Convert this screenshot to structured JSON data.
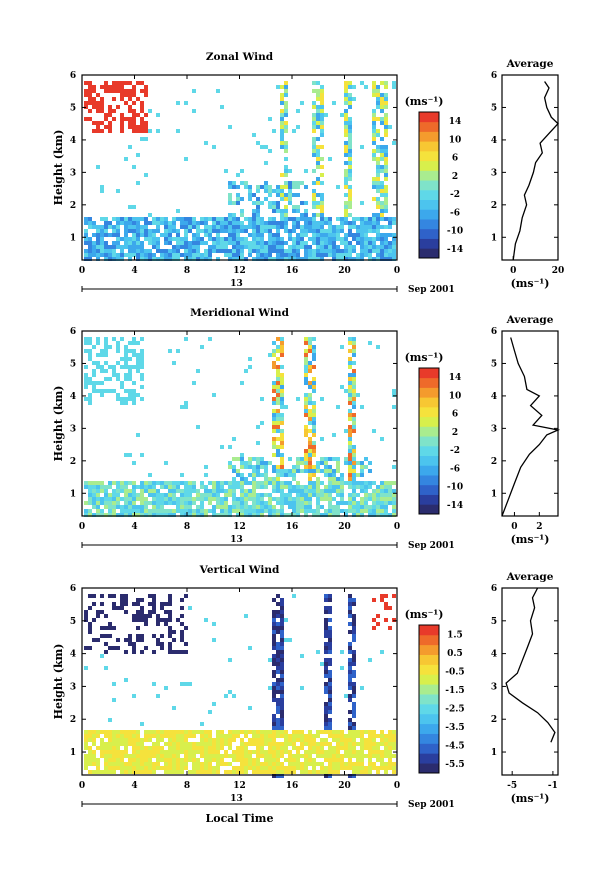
{
  "chart_data": [
    {
      "type": "heatmap",
      "title": "Zonal Wind",
      "ylabel": "Height (km)",
      "ylim": [
        0.3,
        6
      ],
      "xlim": [
        0,
        24
      ],
      "x_ticks": [
        "0",
        "4",
        "8",
        "12",
        "16",
        "20",
        "0"
      ],
      "y_ticks": [
        "1",
        "2",
        "3",
        "4",
        "5",
        "6"
      ],
      "date_day": "13",
      "date_suffix": "Sep 2001",
      "colorbar": {
        "unit": "(ms⁻¹)",
        "ticks": [
          "14",
          "10",
          "6",
          "2",
          "-2",
          "-6",
          "-10",
          "-14"
        ],
        "range": [
          -14,
          14
        ]
      },
      "average": {
        "title": "Average",
        "xlabel": "(ms⁻¹)",
        "xlim": [
          -5,
          20
        ],
        "x_ticks": [
          "0",
          "20"
        ],
        "profile": [
          [
            0,
            0.3
          ],
          [
            1,
            0.8
          ],
          [
            3,
            1.2
          ],
          [
            4,
            1.6
          ],
          [
            6,
            2.0
          ],
          [
            5,
            2.3
          ],
          [
            7,
            2.6
          ],
          [
            9,
            3.0
          ],
          [
            10,
            3.3
          ],
          [
            13,
            3.6
          ],
          [
            12,
            3.9
          ],
          [
            16,
            4.2
          ],
          [
            20,
            4.5
          ],
          [
            17,
            4.7
          ],
          [
            15,
            5.0
          ],
          [
            14,
            5.3
          ],
          [
            16,
            5.6
          ],
          [
            14,
            5.8
          ]
        ]
      }
    },
    {
      "type": "heatmap",
      "title": "Meridional Wind",
      "ylabel": "Height (km)",
      "ylim": [
        0.3,
        6
      ],
      "xlim": [
        0,
        24
      ],
      "x_ticks": [
        "0",
        "4",
        "8",
        "12",
        "16",
        "20",
        "0"
      ],
      "y_ticks": [
        "1",
        "2",
        "3",
        "4",
        "5",
        "6"
      ],
      "date_day": "13",
      "date_suffix": "Sep 2001",
      "colorbar": {
        "unit": "(ms⁻¹)",
        "ticks": [
          "14",
          "10",
          "6",
          "2",
          "-2",
          "-6",
          "-10",
          "-14"
        ],
        "range": [
          -14,
          14
        ]
      },
      "average": {
        "title": "Average",
        "xlabel": "(ms⁻¹)",
        "xlim": [
          -1,
          3.5
        ],
        "x_ticks": [
          "0",
          "2"
        ],
        "profile": [
          [
            -1,
            0.3
          ],
          [
            -0.5,
            0.8
          ],
          [
            0,
            1.3
          ],
          [
            0.5,
            1.8
          ],
          [
            1.2,
            2.2
          ],
          [
            2.0,
            2.5
          ],
          [
            2.6,
            2.8
          ],
          [
            3.5,
            2.95
          ],
          [
            1.5,
            3.1
          ],
          [
            2.2,
            3.4
          ],
          [
            1.3,
            3.7
          ],
          [
            2.0,
            4.0
          ],
          [
            1.0,
            4.2
          ],
          [
            0.8,
            4.6
          ],
          [
            0.3,
            5.0
          ],
          [
            0,
            5.4
          ],
          [
            -0.3,
            5.8
          ]
        ]
      }
    },
    {
      "type": "heatmap",
      "title": "Vertical Wind",
      "ylabel": "Height (km)",
      "xlabel": "Local Time",
      "ylim": [
        0.3,
        6
      ],
      "xlim": [
        0,
        24
      ],
      "x_ticks": [
        "0",
        "4",
        "8",
        "12",
        "16",
        "20",
        "0"
      ],
      "y_ticks": [
        "1",
        "2",
        "3",
        "4",
        "5",
        "6"
      ],
      "date_day": "13",
      "date_suffix": "Sep 2001",
      "colorbar": {
        "unit": "(ms⁻¹)",
        "ticks": [
          "1.5",
          "0.5",
          "-0.5",
          "-1.5",
          "-2.5",
          "-3.5",
          "-4.5",
          "-5.5"
        ],
        "range": [
          -6,
          2
        ]
      },
      "average": {
        "title": "Average",
        "xlabel": "(ms⁻¹)",
        "xlim": [
          -6,
          -0.5
        ],
        "x_ticks": [
          "-5",
          "-1"
        ],
        "profile": [
          [
            -1.2,
            1.3
          ],
          [
            -0.8,
            1.6
          ],
          [
            -1.5,
            1.9
          ],
          [
            -2.5,
            2.2
          ],
          [
            -4,
            2.5
          ],
          [
            -5.3,
            2.8
          ],
          [
            -5.6,
            3.1
          ],
          [
            -4.5,
            3.4
          ],
          [
            -4,
            3.8
          ],
          [
            -3.5,
            4.2
          ],
          [
            -3,
            4.6
          ],
          [
            -3.2,
            5.0
          ],
          [
            -2.8,
            5.4
          ],
          [
            -3,
            5.7
          ],
          [
            -2.5,
            6.0
          ]
        ]
      }
    }
  ],
  "colors": {
    "scale": [
      "#2b2c6e",
      "#2a3e9e",
      "#2f62c9",
      "#3486e0",
      "#3ca8ec",
      "#4cc4ee",
      "#5fd8e8",
      "#7fe3c9",
      "#a9ec8f",
      "#d8ef4c",
      "#f5e23c",
      "#f7c733",
      "#f49b2d",
      "#ee6a2a",
      "#e83a2a"
    ]
  }
}
